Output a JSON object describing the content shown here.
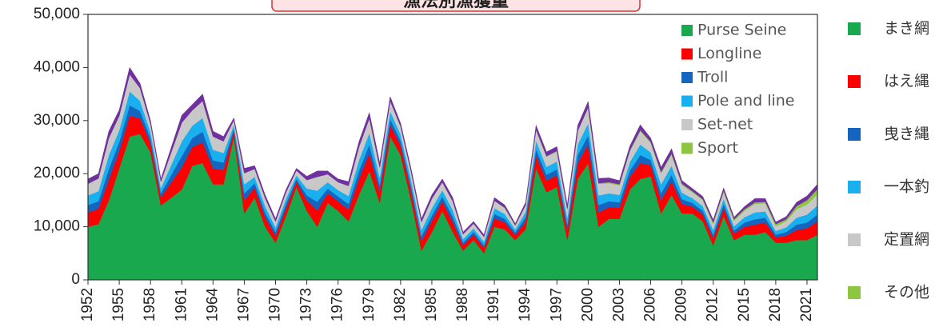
{
  "chart_data": {
    "type": "stacked-area",
    "title": "漁法別漁獲量",
    "x": [
      1952,
      1953,
      1954,
      1955,
      1956,
      1957,
      1958,
      1959,
      1960,
      1961,
      1962,
      1963,
      1964,
      1965,
      1966,
      1967,
      1968,
      1969,
      1970,
      1971,
      1972,
      1973,
      1974,
      1975,
      1976,
      1977,
      1978,
      1979,
      1980,
      1981,
      1982,
      1983,
      1984,
      1985,
      1986,
      1987,
      1988,
      1989,
      1990,
      1991,
      1992,
      1993,
      1994,
      1995,
      1996,
      1997,
      1998,
      1999,
      2000,
      2001,
      2002,
      2003,
      2004,
      2005,
      2006,
      2007,
      2008,
      2009,
      2010,
      2011,
      2012,
      2013,
      2014,
      2015,
      2016,
      2017,
      2018,
      2019,
      2020,
      2021,
      2022
    ],
    "xlim": [
      1952,
      2022
    ],
    "xticks": [
      1952,
      1955,
      1958,
      1961,
      1964,
      1967,
      1970,
      1973,
      1976,
      1979,
      1982,
      1985,
      1988,
      1991,
      1994,
      1997,
      2000,
      2003,
      2006,
      2009,
      2012,
      2015,
      2018,
      2021
    ],
    "ylim": [
      0,
      50000
    ],
    "yticks": [
      0,
      {
        "value": 10000,
        "label": "10,000"
      },
      {
        "value": 20000,
        "label": "20,000"
      },
      {
        "value": 30000,
        "label": "30,000"
      },
      {
        "value": 40000,
        "label": "40,000"
      },
      {
        "value": 50000,
        "label": "50,000"
      }
    ],
    "legend": "upper right",
    "series": [
      {
        "name": "Purse Seine",
        "name_ja": "まき網",
        "color": "#1aa84e",
        "values": [
          10000,
          10500,
          15000,
          21000,
          27000,
          27500,
          24000,
          14000,
          15500,
          17000,
          21500,
          22000,
          18000,
          18000,
          27000,
          12500,
          15500,
          10000,
          7000,
          12000,
          17500,
          13000,
          10000,
          14500,
          13000,
          11000,
          16000,
          20500,
          14500,
          27000,
          23500,
          15000,
          5500,
          9000,
          13000,
          9000,
          5500,
          7500,
          5000,
          10000,
          9500,
          7500,
          9500,
          21000,
          16500,
          17500,
          7500,
          19000,
          22000,
          10000,
          11500,
          11500,
          17000,
          19000,
          19500,
          12500,
          16000,
          12500,
          12500,
          11000,
          6500,
          12000,
          7500,
          8500,
          8500,
          9000,
          7000,
          7000,
          7500,
          7500,
          8500
        ]
      },
      {
        "name": "Longline",
        "name_ja": "はえ縄",
        "color": "#ff0000",
        "values": [
          2700,
          2900,
          3900,
          3300,
          3900,
          2900,
          1800,
          1500,
          2900,
          4200,
          3500,
          3900,
          3000,
          2700,
          1000,
          2500,
          1800,
          1800,
          1300,
          1500,
          1000,
          1900,
          3100,
          1800,
          1800,
          2200,
          3000,
          3300,
          2200,
          2200,
          1800,
          1800,
          1800,
          2100,
          1800,
          1900,
          1000,
          1000,
          1000,
          1600,
          1300,
          900,
          1500,
          2400,
          2200,
          2200,
          1900,
          3000,
          3500,
          2700,
          2200,
          2100,
          2400,
          3000,
          2100,
          2500,
          2500,
          1800,
          1300,
          1300,
          1300,
          1500,
          1200,
          1500,
          1900,
          1800,
          1000,
          1300,
          1900,
          2200,
          2500
        ]
      },
      {
        "name": "Troll",
        "name_ja": "曳き縄",
        "color": "#1565c0",
        "values": [
          1400,
          1400,
          2000,
          1700,
          2000,
          1400,
          900,
          800,
          1400,
          2100,
          1700,
          2000,
          1500,
          1400,
          500,
          1300,
          900,
          900,
          700,
          800,
          500,
          1000,
          1600,
          900,
          900,
          1100,
          1500,
          1700,
          1100,
          1100,
          900,
          900,
          900,
          1000,
          900,
          1000,
          500,
          500,
          500,
          800,
          700,
          500,
          800,
          1200,
          1100,
          1100,
          1000,
          1500,
          1700,
          1400,
          1100,
          1000,
          1200,
          1500,
          1000,
          1300,
          1300,
          900,
          700,
          700,
          700,
          800,
          600,
          800,
          1000,
          900,
          500,
          700,
          1000,
          1100,
          1300
        ]
      },
      {
        "name": "Pole and line",
        "name_ja": "一本釣",
        "color": "#1ab0ef",
        "values": [
          1800,
          1900,
          2600,
          2200,
          2600,
          1900,
          1200,
          1000,
          1900,
          2800,
          2300,
          2600,
          2000,
          1800,
          700,
          1700,
          1200,
          1200,
          900,
          1000,
          700,
          1300,
          2100,
          1200,
          1200,
          1500,
          2000,
          2200,
          1500,
          1500,
          1200,
          1200,
          1200,
          1400,
          1200,
          1300,
          700,
          700,
          700,
          1100,
          900,
          600,
          1000,
          1600,
          1500,
          1500,
          1300,
          2000,
          2300,
          1800,
          1500,
          1400,
          1600,
          2000,
          1400,
          1700,
          1700,
          1200,
          900,
          900,
          900,
          1000,
          800,
          1000,
          1300,
          1200,
          700,
          900,
          1300,
          1500,
          1700
        ]
      },
      {
        "name": "Set-net",
        "name_ja": "定置網",
        "color": "#c8c8c8",
        "values": [
          2200,
          2400,
          3200,
          2700,
          3200,
          2400,
          1500,
          1200,
          2400,
          3500,
          2900,
          3200,
          2500,
          2200,
          900,
          2100,
          1500,
          1500,
          1100,
          1200,
          900,
          1600,
          2600,
          1500,
          1500,
          1900,
          2500,
          2700,
          1900,
          1900,
          1500,
          1500,
          1500,
          1800,
          1500,
          1600,
          900,
          900,
          900,
          1400,
          1100,
          700,
          1200,
          2000,
          1900,
          1900,
          1600,
          2500,
          2900,
          2200,
          1900,
          1800,
          2000,
          2500,
          1800,
          2100,
          2100,
          1500,
          1100,
          1100,
          1100,
          1200,
          1000,
          1200,
          1600,
          1500,
          900,
          1100,
          1600,
          1900,
          2100
        ]
      },
      {
        "name": "Sport",
        "name_ja": "その他",
        "color": "#8dc63f",
        "values": [
          0,
          0,
          0,
          0,
          0,
          0,
          0,
          0,
          0,
          0,
          0,
          0,
          0,
          0,
          0,
          0,
          0,
          0,
          0,
          0,
          0,
          0,
          0,
          0,
          0,
          0,
          0,
          0,
          0,
          0,
          0,
          0,
          0,
          0,
          0,
          0,
          0,
          0,
          0,
          0,
          100,
          100,
          100,
          100,
          100,
          100,
          100,
          100,
          100,
          100,
          200,
          200,
          200,
          200,
          200,
          200,
          200,
          200,
          200,
          200,
          300,
          300,
          300,
          300,
          300,
          300,
          400,
          400,
          600,
          800,
          1000
        ]
      },
      {
        "color": "#7030a0",
        "values": [
          900,
          900,
          1300,
          1100,
          1300,
          900,
          600,
          500,
          900,
          1400,
          1100,
          1300,
          1000,
          900,
          400,
          900,
          600,
          600,
          500,
          500,
          400,
          700,
          1100,
          600,
          600,
          800,
          1000,
          1100,
          800,
          800,
          600,
          600,
          600,
          700,
          600,
          700,
          400,
          400,
          400,
          600,
          500,
          300,
          500,
          800,
          800,
          800,
          700,
          1000,
          1100,
          900,
          800,
          700,
          800,
          1000,
          700,
          900,
          900,
          600,
          500,
          500,
          500,
          500,
          400,
          500,
          700,
          600,
          400,
          500,
          700,
          800,
          900
        ]
      }
    ]
  }
}
